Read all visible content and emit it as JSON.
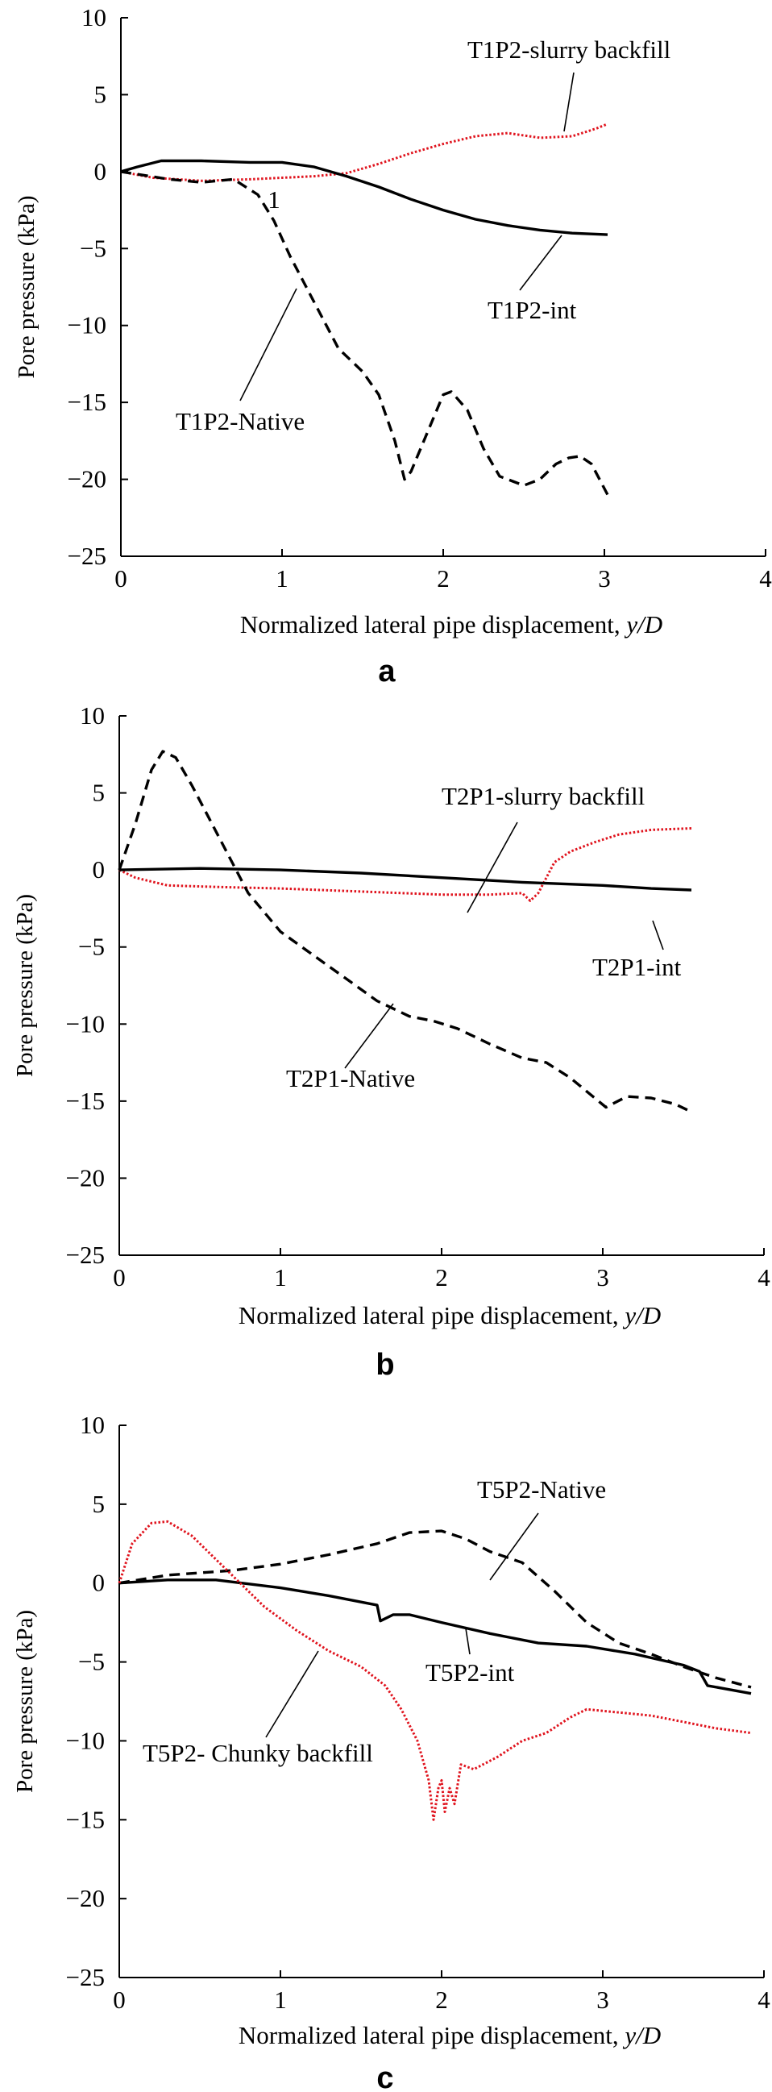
{
  "figure": {
    "panels": [
      "a",
      "b",
      "c"
    ]
  },
  "chart_data": [
    {
      "type": "line",
      "panel_label": "a",
      "xlabel": "Normalized lateral pipe displacement, ",
      "xlabel_var": "y/D",
      "ylabel": "Pore pressure (kPa)",
      "xlim": [
        0,
        4
      ],
      "ylim": [
        -25,
        10
      ],
      "xticks": [
        "0",
        "1",
        "2",
        "3",
        "4"
      ],
      "yticks": [
        "10",
        "5",
        "0",
        "−5",
        "−10",
        "−15",
        "−20",
        "−25"
      ],
      "extra_annotation": "1",
      "series": [
        {
          "name": "T1P2-slurry backfill",
          "style": "dotted",
          "color": "#e0141e",
          "points": [
            [
              0,
              0
            ],
            [
              0.2,
              -0.4
            ],
            [
              0.5,
              -0.6
            ],
            [
              0.8,
              -0.5
            ],
            [
              1.0,
              -0.4
            ],
            [
              1.2,
              -0.3
            ],
            [
              1.4,
              -0.1
            ],
            [
              1.6,
              0.5
            ],
            [
              1.8,
              1.2
            ],
            [
              2.0,
              1.8
            ],
            [
              2.2,
              2.3
            ],
            [
              2.4,
              2.5
            ],
            [
              2.6,
              2.2
            ],
            [
              2.8,
              2.3
            ],
            [
              2.95,
              2.8
            ],
            [
              3.02,
              3.1
            ]
          ]
        },
        {
          "name": "T1P2-int",
          "style": "solid",
          "color": "#000000",
          "points": [
            [
              0,
              0
            ],
            [
              0.1,
              0.3
            ],
            [
              0.25,
              0.7
            ],
            [
              0.5,
              0.7
            ],
            [
              0.8,
              0.6
            ],
            [
              1.0,
              0.6
            ],
            [
              1.2,
              0.3
            ],
            [
              1.4,
              -0.3
            ],
            [
              1.6,
              -1.0
            ],
            [
              1.8,
              -1.8
            ],
            [
              2.0,
              -2.5
            ],
            [
              2.2,
              -3.1
            ],
            [
              2.4,
              -3.5
            ],
            [
              2.6,
              -3.8
            ],
            [
              2.8,
              -4.0
            ],
            [
              3.02,
              -4.1
            ]
          ]
        },
        {
          "name": "T1P2-Native",
          "style": "dashed",
          "color": "#000000",
          "points": [
            [
              0,
              0
            ],
            [
              0.3,
              -0.5
            ],
            [
              0.5,
              -0.7
            ],
            [
              0.7,
              -0.5
            ],
            [
              0.85,
              -1.5
            ],
            [
              0.95,
              -3.2
            ],
            [
              1.05,
              -5.5
            ],
            [
              1.15,
              -7.5
            ],
            [
              1.25,
              -9.5
            ],
            [
              1.35,
              -11.5
            ],
            [
              1.5,
              -13
            ],
            [
              1.6,
              -14.5
            ],
            [
              1.7,
              -17.5
            ],
            [
              1.76,
              -20
            ],
            [
              1.8,
              -19.5
            ],
            [
              1.9,
              -17
            ],
            [
              2.0,
              -14.5
            ],
            [
              2.05,
              -14.3
            ],
            [
              2.15,
              -15.5
            ],
            [
              2.25,
              -18
            ],
            [
              2.35,
              -19.8
            ],
            [
              2.5,
              -20.4
            ],
            [
              2.6,
              -20
            ],
            [
              2.7,
              -19
            ],
            [
              2.78,
              -18.6
            ],
            [
              2.85,
              -18.5
            ],
            [
              2.92,
              -19
            ],
            [
              2.97,
              -20
            ],
            [
              3.02,
              -21
            ]
          ]
        }
      ],
      "annotations": [
        {
          "text": "T1P2-slurry backfill",
          "for": "T1P2-slurry backfill"
        },
        {
          "text": "T1P2-int",
          "for": "T1P2-int"
        },
        {
          "text": "T1P2-Native",
          "for": "T1P2-Native"
        }
      ]
    },
    {
      "type": "line",
      "panel_label": "b",
      "xlabel": "Normalized lateral pipe displacement, ",
      "xlabel_var": "y/D",
      "ylabel": "Pore pressure (kPa)",
      "xlim": [
        0,
        4
      ],
      "ylim": [
        -25,
        10
      ],
      "xticks": [
        "0",
        "1",
        "2",
        "3",
        "4"
      ],
      "yticks": [
        "10",
        "5",
        "0",
        "−5",
        "−10",
        "−15",
        "−20",
        "−25"
      ],
      "series": [
        {
          "name": "T2P1-slurry backfill",
          "style": "dotted",
          "color": "#e0141e",
          "points": [
            [
              0,
              0
            ],
            [
              0.1,
              -0.5
            ],
            [
              0.3,
              -1.0
            ],
            [
              0.6,
              -1.1
            ],
            [
              1.0,
              -1.2
            ],
            [
              1.5,
              -1.4
            ],
            [
              2.0,
              -1.6
            ],
            [
              2.3,
              -1.6
            ],
            [
              2.5,
              -1.5
            ],
            [
              2.55,
              -2.0
            ],
            [
              2.6,
              -1.5
            ],
            [
              2.65,
              -0.5
            ],
            [
              2.7,
              0.5
            ],
            [
              2.8,
              1.2
            ],
            [
              2.95,
              1.8
            ],
            [
              3.1,
              2.3
            ],
            [
              3.3,
              2.6
            ],
            [
              3.55,
              2.7
            ]
          ]
        },
        {
          "name": "T2P1-int",
          "style": "solid",
          "color": "#000000",
          "points": [
            [
              0,
              0
            ],
            [
              0.5,
              0.1
            ],
            [
              1.0,
              0.0
            ],
            [
              1.5,
              -0.2
            ],
            [
              2.0,
              -0.5
            ],
            [
              2.5,
              -0.8
            ],
            [
              3.0,
              -1.0
            ],
            [
              3.3,
              -1.2
            ],
            [
              3.55,
              -1.3
            ]
          ]
        },
        {
          "name": "T2P1-Native",
          "style": "dashed",
          "color": "#000000",
          "points": [
            [
              0,
              0
            ],
            [
              0.1,
              3
            ],
            [
              0.2,
              6.5
            ],
            [
              0.27,
              7.7
            ],
            [
              0.35,
              7.3
            ],
            [
              0.45,
              5.5
            ],
            [
              0.55,
              3.5
            ],
            [
              0.65,
              1.5
            ],
            [
              0.8,
              -1.5
            ],
            [
              1.0,
              -4
            ],
            [
              1.2,
              -5.5
            ],
            [
              1.4,
              -7
            ],
            [
              1.6,
              -8.5
            ],
            [
              1.8,
              -9.5
            ],
            [
              1.95,
              -9.8
            ],
            [
              2.1,
              -10.3
            ],
            [
              2.3,
              -11.3
            ],
            [
              2.5,
              -12.2
            ],
            [
              2.65,
              -12.5
            ],
            [
              2.8,
              -13.5
            ],
            [
              2.95,
              -14.8
            ],
            [
              3.02,
              -15.4
            ],
            [
              3.15,
              -14.7
            ],
            [
              3.3,
              -14.8
            ],
            [
              3.45,
              -15.2
            ],
            [
              3.55,
              -15.7
            ]
          ]
        }
      ],
      "annotations": [
        {
          "text": "T2P1-slurry backfill",
          "for": "T2P1-slurry backfill"
        },
        {
          "text": "T2P1-int",
          "for": "T2P1-int"
        },
        {
          "text": "T2P1-Native",
          "for": "T2P1-Native"
        }
      ]
    },
    {
      "type": "line",
      "panel_label": "c",
      "xlabel": "Normalized lateral pipe displacement, ",
      "xlabel_var": "y/D",
      "ylabel": "Pore pressure (kPa)",
      "xlim": [
        0,
        4
      ],
      "ylim": [
        -25,
        10
      ],
      "xticks": [
        "0",
        "1",
        "2",
        "3",
        "4"
      ],
      "yticks": [
        "10",
        "5",
        "0",
        "−5",
        "−10",
        "−15",
        "−20",
        "−25"
      ],
      "series": [
        {
          "name": "T5P2-Native",
          "style": "dashed",
          "color": "#000000",
          "points": [
            [
              0,
              0
            ],
            [
              0.3,
              0.5
            ],
            [
              0.7,
              0.8
            ],
            [
              1.0,
              1.2
            ],
            [
              1.3,
              1.8
            ],
            [
              1.6,
              2.5
            ],
            [
              1.8,
              3.2
            ],
            [
              2.0,
              3.3
            ],
            [
              2.15,
              2.8
            ],
            [
              2.3,
              2.0
            ],
            [
              2.5,
              1.3
            ],
            [
              2.7,
              -0.5
            ],
            [
              2.9,
              -2.5
            ],
            [
              3.1,
              -3.8
            ],
            [
              3.3,
              -4.5
            ],
            [
              3.5,
              -5.3
            ],
            [
              3.7,
              -6.0
            ],
            [
              3.92,
              -6.6
            ]
          ]
        },
        {
          "name": "T5P2-int",
          "style": "solid",
          "color": "#000000",
          "points": [
            [
              0,
              0
            ],
            [
              0.3,
              0.2
            ],
            [
              0.6,
              0.2
            ],
            [
              1.0,
              -0.3
            ],
            [
              1.3,
              -0.8
            ],
            [
              1.6,
              -1.4
            ],
            [
              1.62,
              -2.4
            ],
            [
              1.7,
              -2.0
            ],
            [
              1.8,
              -2.0
            ],
            [
              2.0,
              -2.5
            ],
            [
              2.3,
              -3.2
            ],
            [
              2.6,
              -3.8
            ],
            [
              2.9,
              -4.0
            ],
            [
              3.2,
              -4.5
            ],
            [
              3.5,
              -5.2
            ],
            [
              3.6,
              -5.6
            ],
            [
              3.65,
              -6.5
            ],
            [
              3.92,
              -7.0
            ]
          ]
        },
        {
          "name": "T5P2- Chunky backfill",
          "style": "dotted",
          "color": "#e0141e",
          "points": [
            [
              0,
              0
            ],
            [
              0.08,
              2.5
            ],
            [
              0.2,
              3.8
            ],
            [
              0.3,
              3.9
            ],
            [
              0.45,
              3.0
            ],
            [
              0.6,
              1.5
            ],
            [
              0.75,
              0
            ],
            [
              0.9,
              -1.5
            ],
            [
              1.1,
              -3.0
            ],
            [
              1.3,
              -4.3
            ],
            [
              1.5,
              -5.3
            ],
            [
              1.65,
              -6.5
            ],
            [
              1.75,
              -8.0
            ],
            [
              1.85,
              -10
            ],
            [
              1.92,
              -12.5
            ],
            [
              1.95,
              -15
            ],
            [
              1.98,
              -13
            ],
            [
              2.0,
              -12.5
            ],
            [
              2.02,
              -14.5
            ],
            [
              2.05,
              -13
            ],
            [
              2.08,
              -14
            ],
            [
              2.12,
              -11.5
            ],
            [
              2.2,
              -11.8
            ],
            [
              2.35,
              -11
            ],
            [
              2.5,
              -10
            ],
            [
              2.65,
              -9.5
            ],
            [
              2.8,
              -8.5
            ],
            [
              2.9,
              -8.0
            ],
            [
              3.1,
              -8.2
            ],
            [
              3.3,
              -8.4
            ],
            [
              3.5,
              -8.8
            ],
            [
              3.7,
              -9.2
            ],
            [
              3.92,
              -9.5
            ]
          ]
        }
      ],
      "annotations": [
        {
          "text": "T5P2-Native",
          "for": "T5P2-Native"
        },
        {
          "text": "T5P2-int",
          "for": "T5P2-int"
        },
        {
          "text": "T5P2- Chunky backfill",
          "for": "T5P2- Chunky backfill"
        }
      ]
    }
  ]
}
